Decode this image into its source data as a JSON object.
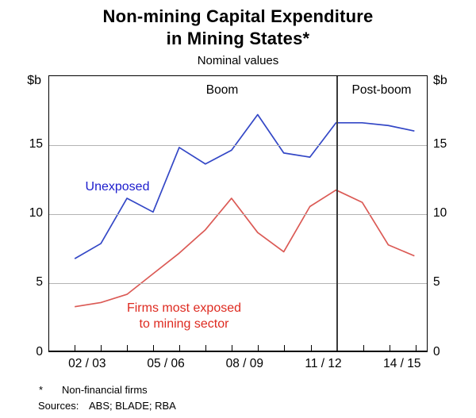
{
  "header": {
    "title_line1": "Non-mining Capital Expenditure",
    "title_line2": "in Mining States*",
    "subtitle": "Nominal values"
  },
  "axes": {
    "unit_left": "$b",
    "unit_right": "$b"
  },
  "annotations": {
    "boom": "Boom",
    "post_boom": "Post-boom",
    "unexposed": "Unexposed",
    "exposed_line1": "Firms most exposed",
    "exposed_line2": "to mining sector"
  },
  "footnotes": {
    "symbol": "*",
    "note": "Non-financial firms",
    "sources_label": "Sources:",
    "sources": "ABS; BLADE; RBA"
  },
  "colors": {
    "blue_line": "#3347c6",
    "blue_label": "#1c1ccd",
    "red_line": "#db5a55",
    "red_label": "#de2a20",
    "gridline": "#b3b3b3",
    "divider": "#3a3a3a",
    "border": "#000000"
  },
  "chart_data": {
    "type": "line",
    "title": "Non-mining Capital Expenditure in Mining States*",
    "subtitle": "Nominal values",
    "ylabel": "$b",
    "ylim": [
      0,
      20
    ],
    "gridlines": [
      5,
      10,
      15
    ],
    "grid": "horizontal-only",
    "y_ticks": [
      0,
      5,
      10,
      15
    ],
    "x": [
      "01/02",
      "02/03",
      "03/04",
      "04/05",
      "05/06",
      "06/07",
      "07/08",
      "08/09",
      "09/10",
      "10/11",
      "11/12",
      "12/13",
      "13/14",
      "14/15"
    ],
    "x_axis_labels": [
      "02 / 03",
      "05 / 06",
      "08 / 09",
      "11 / 12",
      "14 / 15"
    ],
    "x_label_indices": [
      1,
      4,
      7,
      10,
      13
    ],
    "divider_index": 10,
    "period_labels": {
      "before": "Boom",
      "after": "Post-boom"
    },
    "series": [
      {
        "name": "Unexposed",
        "color": "#3347c6",
        "values": [
          6.7,
          7.8,
          11.1,
          10.1,
          14.8,
          13.6,
          14.6,
          17.2,
          14.4,
          14.1,
          16.6,
          16.6,
          16.4,
          16.0
        ]
      },
      {
        "name": "Firms most exposed to mining sector",
        "color": "#db5a55",
        "values": [
          3.2,
          3.5,
          4.1,
          5.6,
          7.1,
          8.8,
          11.1,
          8.6,
          7.2,
          10.5,
          11.7,
          10.8,
          7.7,
          6.9
        ]
      }
    ]
  }
}
